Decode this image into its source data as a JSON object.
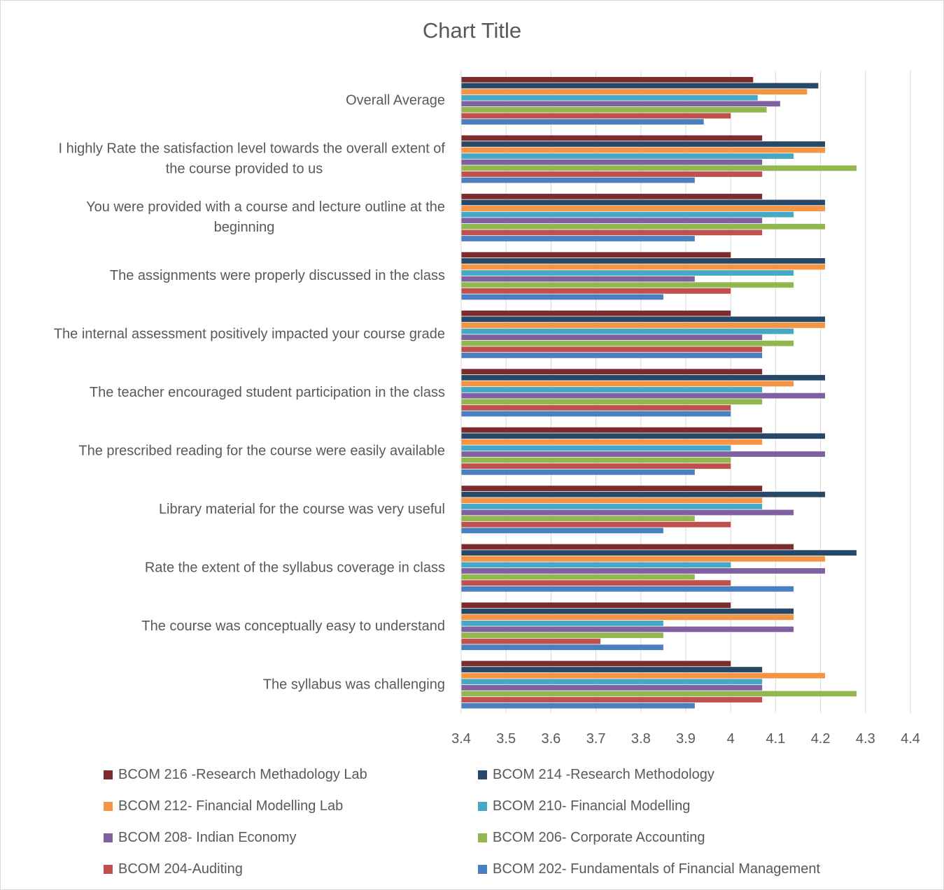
{
  "chart_data": {
    "type": "bar",
    "orientation": "horizontal",
    "title": "Chart Title",
    "xlabel": "",
    "ylabel": "",
    "xlim": [
      3.4,
      4.4
    ],
    "xticks": [
      "3.4",
      "3.5",
      "3.6",
      "3.7",
      "3.8",
      "3.9",
      "4",
      "4.1",
      "4.2",
      "4.3",
      "4.4"
    ],
    "grid": "vertical",
    "legend_position": "bottom",
    "categories": [
      "Overall Average",
      "I highly Rate the satisfaction level towards the overall extent of the course provided to us",
      "You were provided with a course and lecture outline at the beginning",
      "The assignments were properly discussed in the class",
      "The internal assessment positively impacted your course grade",
      "The teacher encouraged student participation in the class",
      "The prescribed reading for the course were easily available",
      "Library material for the course was very useful",
      "Rate the extent of the syllabus coverage in class",
      "The course was conceptually easy to understand",
      "The syllabus was challenging"
    ],
    "category_label_lines": [
      [
        "Overall Average"
      ],
      [
        "I highly Rate the satisfaction level towards the overall extent of",
        "the course provided to us"
      ],
      [
        "You were provided with a course and lecture outline at the",
        "beginning"
      ],
      [
        "The assignments were properly discussed in the class"
      ],
      [
        "The internal assessment positively impacted your course grade"
      ],
      [
        "The teacher encouraged student participation in the class"
      ],
      [
        "The prescribed reading for the course were easily available"
      ],
      [
        "Library material for the course was very useful"
      ],
      [
        "Rate the extent of the syllabus coverage in class"
      ],
      [
        "The course was conceptually easy to understand"
      ],
      [
        "The syllabus was challenging"
      ]
    ],
    "series": [
      {
        "name": "BCOM 216 -Research Methadology Lab",
        "color": "#7b2c2c",
        "values": [
          4.05,
          4.07,
          4.07,
          4.0,
          4.0,
          4.07,
          4.07,
          4.07,
          4.14,
          4.0,
          4.0
        ]
      },
      {
        "name": "BCOM 214 -Research Methodology",
        "color": "#284868",
        "values": [
          4.195,
          4.21,
          4.21,
          4.21,
          4.21,
          4.21,
          4.21,
          4.21,
          4.28,
          4.14,
          4.07
        ]
      },
      {
        "name": "BCOM 212- Financial Modelling Lab",
        "color": "#f59443",
        "values": [
          4.17,
          4.21,
          4.21,
          4.21,
          4.21,
          4.14,
          4.07,
          4.07,
          4.21,
          4.14,
          4.21
        ]
      },
      {
        "name": "BCOM 210- Financial Modelling",
        "color": "#46a8c4",
        "values": [
          4.06,
          4.14,
          4.14,
          4.14,
          4.14,
          4.07,
          4.0,
          4.07,
          4.0,
          3.85,
          4.07
        ]
      },
      {
        "name": "BCOM 208- Indian Economy",
        "color": "#7f60a0",
        "values": [
          4.11,
          4.07,
          4.07,
          3.92,
          4.07,
          4.21,
          4.21,
          4.14,
          4.21,
          4.14,
          4.07
        ]
      },
      {
        "name": "BCOM 206- Corporate Accounting",
        "color": "#92b74f",
        "values": [
          4.08,
          4.28,
          4.21,
          4.14,
          4.14,
          4.07,
          4.0,
          3.92,
          3.92,
          3.85,
          4.28
        ]
      },
      {
        "name": "BCOM 204-Auditing",
        "color": "#c0504d",
        "values": [
          4.0,
          4.07,
          4.07,
          4.0,
          4.07,
          4.0,
          4.0,
          4.0,
          4.0,
          3.71,
          4.07
        ]
      },
      {
        "name": "BCOM 202- Fundamentals of Financial Management",
        "color": "#4a7fc0",
        "values": [
          3.94,
          3.92,
          3.92,
          3.85,
          4.07,
          4.0,
          3.92,
          3.85,
          4.14,
          3.85,
          3.92
        ]
      }
    ]
  }
}
